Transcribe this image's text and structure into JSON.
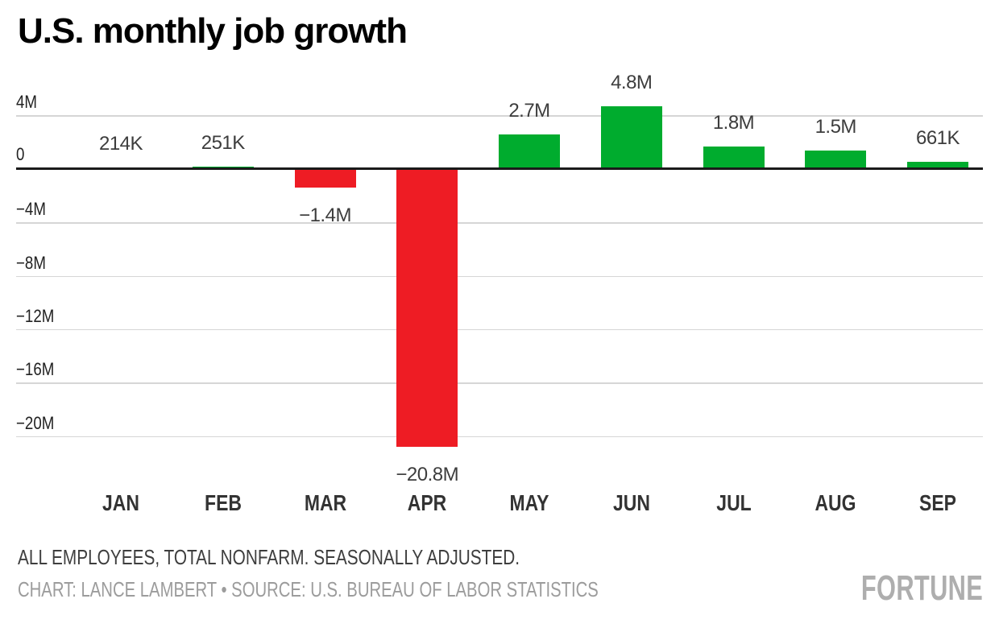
{
  "title": "U.S. monthly job growth",
  "colors": {
    "positive_bar": "#00ac2e",
    "negative_bar": "#ee1c24",
    "gridline": "#d6d6d6",
    "axis_line": "#1a1a1a",
    "credit_text": "#9c9c9c",
    "brand_text": "#aeaeae"
  },
  "chart_data": {
    "type": "bar",
    "title": "U.S. monthly job growth",
    "categories": [
      "JAN",
      "FEB",
      "MAR",
      "APR",
      "MAY",
      "JUN",
      "JUL",
      "AUG",
      "SEP"
    ],
    "values_millions": [
      0.214,
      0.251,
      -1.4,
      -20.8,
      2.7,
      4.8,
      1.8,
      1.5,
      0.661
    ],
    "value_labels": [
      "214K",
      "251K",
      "−1.4M",
      "−20.8M",
      "2.7M",
      "4.8M",
      "1.8M",
      "1.5M",
      "661K"
    ],
    "y_ticks": [
      {
        "label": "4M",
        "value": 4
      },
      {
        "label": "0",
        "value": 0
      },
      {
        "label": "−4M",
        "value": -4
      },
      {
        "label": "−8M",
        "value": -8
      },
      {
        "label": "−12M",
        "value": -12
      },
      {
        "label": "−16M",
        "value": -16
      },
      {
        "label": "−20M",
        "value": -20
      }
    ],
    "ylim": [
      -21.5,
      5
    ],
    "grid": true,
    "legend": false,
    "xlabel": "",
    "ylabel": ""
  },
  "footer": {
    "note": "ALL EMPLOYEES, TOTAL NONFARM. SEASONALLY ADJUSTED.",
    "credit": "CHART: LANCE LAMBERT • SOURCE: U.S. BUREAU OF LABOR STATISTICS",
    "brand": "FORTUNE"
  }
}
